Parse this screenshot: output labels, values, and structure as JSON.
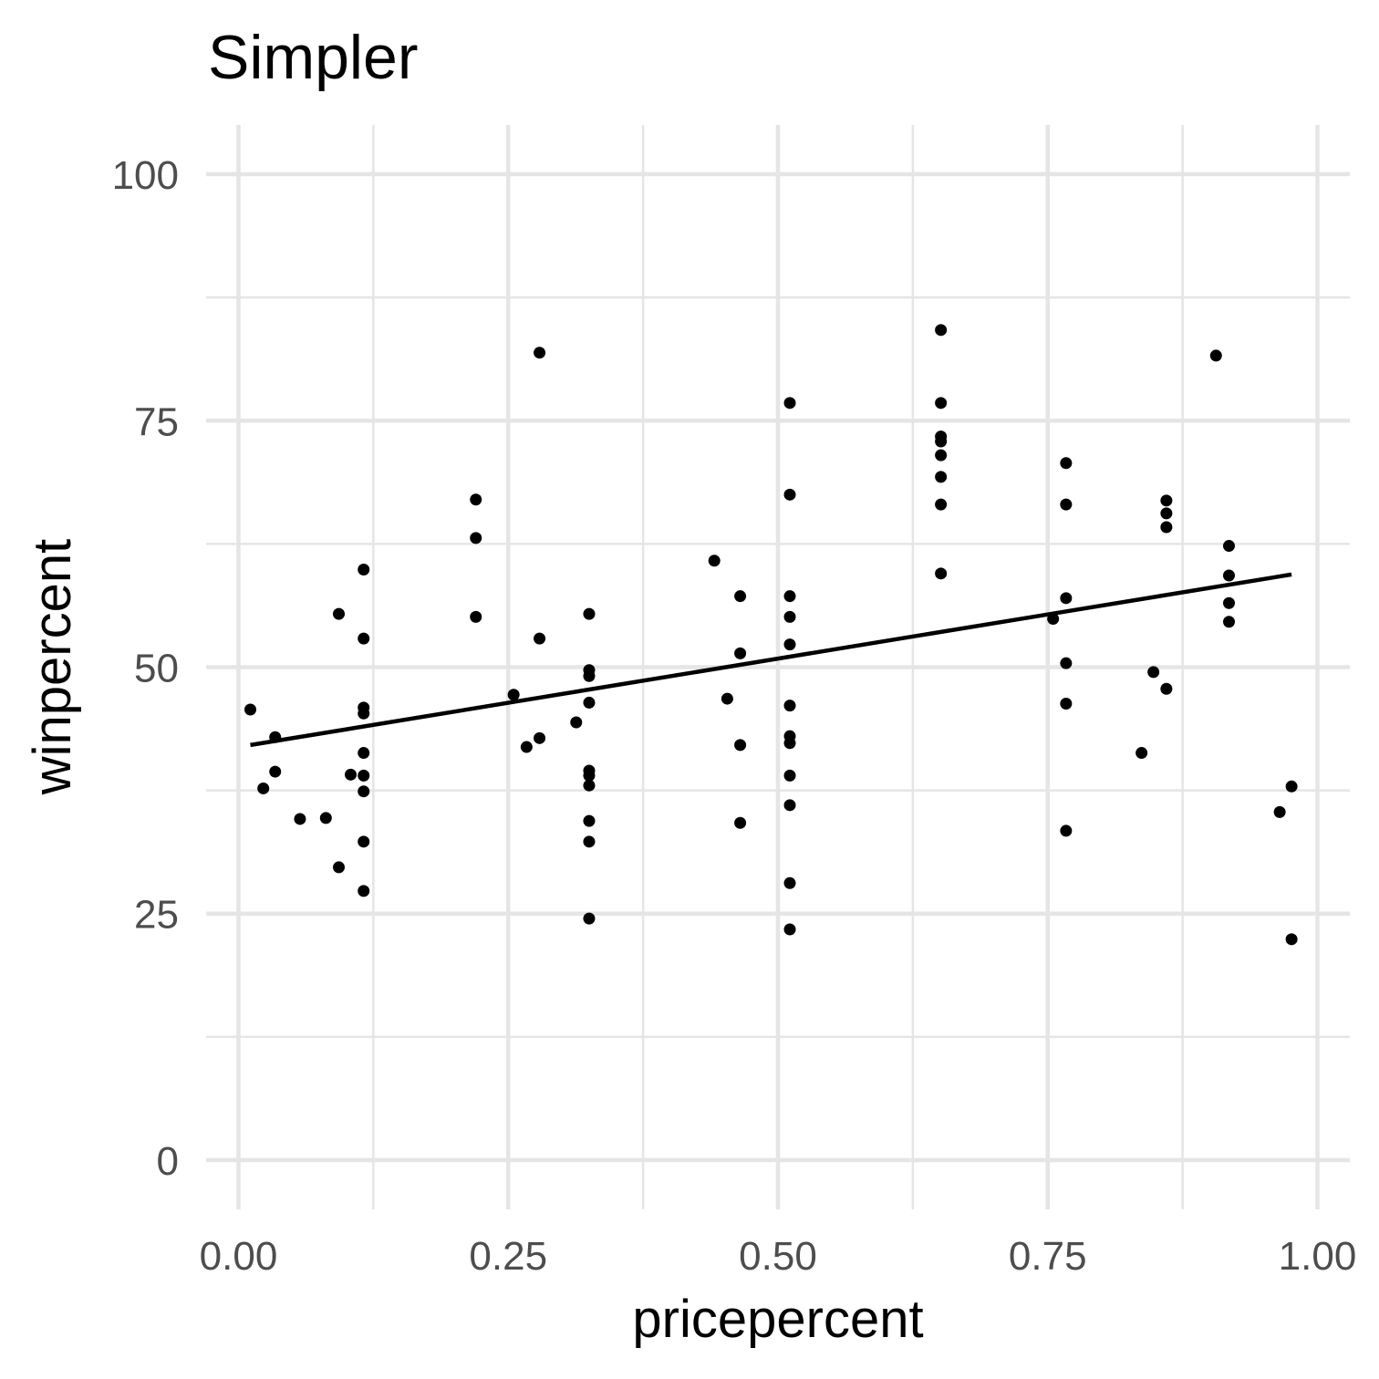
{
  "chart_data": {
    "type": "scatter",
    "title": "Simpler",
    "xlabel": "pricepercent",
    "ylabel": "winpercent",
    "xlim": [
      -0.03,
      1.03
    ],
    "ylim": [
      -5,
      105
    ],
    "x_ticks": [
      0.0,
      0.25,
      0.5,
      0.75,
      1.0
    ],
    "x_tick_labels": [
      "0.00",
      "0.25",
      "0.50",
      "0.75",
      "1.00"
    ],
    "x_minor_ticks": [
      0.125,
      0.375,
      0.625,
      0.875
    ],
    "y_ticks": [
      0,
      25,
      50,
      75,
      100
    ],
    "y_tick_labels": [
      "0",
      "25",
      "50",
      "75",
      "100"
    ],
    "y_minor_ticks": [
      12.5,
      37.5,
      62.5,
      87.5
    ],
    "grid": true,
    "points": {
      "x": [
        0.011,
        0.023,
        0.034,
        0.034,
        0.057,
        0.081,
        0.093,
        0.093,
        0.104,
        0.116,
        0.116,
        0.116,
        0.116,
        0.116,
        0.116,
        0.116,
        0.116,
        0.116,
        0.22,
        0.22,
        0.22,
        0.255,
        0.267,
        0.279,
        0.279,
        0.279,
        0.313,
        0.325,
        0.325,
        0.325,
        0.325,
        0.325,
        0.325,
        0.325,
        0.325,
        0.325,
        0.325,
        0.441,
        0.453,
        0.465,
        0.465,
        0.465,
        0.465,
        0.511,
        0.511,
        0.511,
        0.511,
        0.511,
        0.511,
        0.511,
        0.511,
        0.511,
        0.511,
        0.511,
        0.511,
        0.651,
        0.651,
        0.651,
        0.651,
        0.651,
        0.651,
        0.651,
        0.651,
        0.755,
        0.767,
        0.767,
        0.767,
        0.767,
        0.767,
        0.767,
        0.837,
        0.848,
        0.86,
        0.86,
        0.86,
        0.86,
        0.906,
        0.918,
        0.918,
        0.918,
        0.918,
        0.965,
        0.976,
        0.976
      ],
      "y": [
        45.7,
        37.7,
        42.9,
        39.4,
        34.6,
        34.7,
        29.7,
        55.4,
        39.1,
        59.9,
        52.9,
        45.9,
        45.3,
        41.3,
        39.0,
        37.4,
        32.3,
        27.3,
        67.0,
        63.1,
        55.1,
        47.2,
        41.9,
        81.9,
        52.9,
        42.8,
        44.4,
        55.4,
        49.7,
        49.1,
        46.4,
        39.5,
        39.0,
        38.0,
        34.4,
        32.3,
        24.5,
        60.8,
        46.8,
        57.2,
        51.4,
        42.1,
        34.2,
        76.8,
        67.5,
        57.2,
        55.1,
        52.3,
        46.1,
        43.0,
        42.3,
        39.0,
        36.0,
        28.1,
        23.4,
        84.2,
        76.8,
        73.4,
        72.9,
        71.5,
        69.3,
        66.5,
        59.5,
        54.9,
        70.7,
        66.5,
        57.0,
        50.4,
        46.3,
        33.4,
        41.3,
        49.5,
        66.9,
        65.6,
        64.2,
        47.8,
        81.6,
        62.3,
        59.3,
        56.5,
        54.6,
        35.3,
        37.9,
        22.4
      ]
    },
    "fit_line": {
      "x": [
        0.011,
        0.976
      ],
      "y": [
        42.1,
        59.4
      ]
    }
  }
}
